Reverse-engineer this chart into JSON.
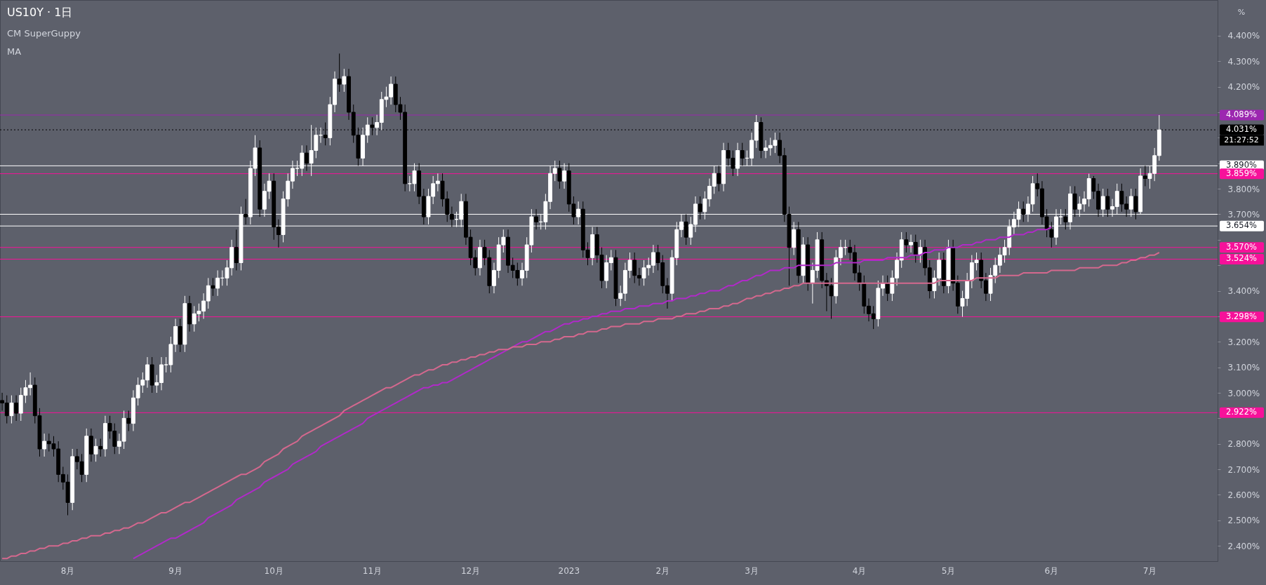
{
  "chart_data": {
    "type": "candlestick",
    "title": "US10Y · 1日",
    "annotations": [
      "CM SuperGuppy",
      "MA",
      "21:27:52",
      "%"
    ],
    "categories": [
      null,
      null,
      null,
      null,
      null,
      null,
      null,
      null,
      null,
      null,
      null,
      null,
      null,
      null,
      "8月",
      null,
      null,
      null,
      null,
      null,
      null,
      null,
      null,
      null,
      null,
      null,
      null,
      null,
      null,
      null,
      null,
      null,
      null,
      null,
      null,
      null,
      null,
      "9月",
      null,
      null,
      null,
      null,
      null,
      null,
      null,
      null,
      null,
      null,
      null,
      null,
      null,
      null,
      null,
      null,
      null,
      null,
      null,
      null,
      "10月",
      null,
      null,
      null,
      null,
      null,
      null,
      null,
      null,
      null,
      null,
      null,
      null,
      null,
      null,
      null,
      null,
      null,
      null,
      null,
      null,
      "11月",
      null,
      null,
      null,
      null,
      null,
      null,
      null,
      null,
      null,
      null,
      null,
      null,
      null,
      null,
      null,
      null,
      null,
      null,
      null,
      null,
      "12月",
      null,
      null,
      null,
      null,
      null,
      null,
      null,
      null,
      null,
      null,
      null,
      null,
      null,
      null,
      null,
      null,
      null,
      null,
      null,
      null,
      "2023",
      null,
      null,
      null,
      null,
      null,
      null,
      null,
      null,
      null,
      null,
      null,
      null,
      null,
      null,
      null,
      null,
      null,
      null,
      null,
      "2月",
      null,
      null,
      null,
      null,
      null,
      null,
      null,
      null,
      null,
      null,
      null,
      null,
      null,
      null,
      null,
      null,
      null,
      null,
      "3月",
      null,
      null,
      null,
      null,
      null,
      null,
      null,
      null,
      null,
      null,
      null,
      null,
      null,
      null,
      null,
      null,
      null,
      null,
      null,
      null,
      null,
      null,
      "4月",
      null,
      null,
      null,
      null,
      null,
      null,
      null,
      null,
      null,
      null,
      null,
      null,
      null,
      null,
      null,
      null,
      null,
      null,
      "5月",
      null,
      null,
      null,
      null,
      null,
      null,
      null,
      null,
      null,
      null,
      null,
      null,
      null,
      null,
      null,
      null,
      null,
      null,
      null,
      null,
      null,
      "6月",
      null,
      null,
      null,
      null,
      null,
      null,
      null,
      null,
      null,
      null,
      null,
      null,
      null,
      null,
      null,
      null,
      null,
      null,
      null,
      null,
      "7月",
      null,
      null,
      null,
      null,
      null,
      null,
      null,
      null,
      null,
      null,
      null,
      null,
      null,
      null
    ],
    "ohlc": [
      [
        2.97,
        3.0,
        2.93,
        2.96
      ],
      [
        2.96,
        2.99,
        2.88,
        2.91
      ],
      [
        2.91,
        2.99,
        2.88,
        2.96
      ],
      [
        2.96,
        2.99,
        2.89,
        2.92
      ],
      [
        2.92,
        3.02,
        2.89,
        2.99
      ],
      [
        2.99,
        3.05,
        2.96,
        3.02
      ],
      [
        3.02,
        3.08,
        2.99,
        3.03
      ],
      [
        3.03,
        3.06,
        2.88,
        2.91
      ],
      [
        2.91,
        2.94,
        2.75,
        2.78
      ],
      [
        2.78,
        2.84,
        2.75,
        2.81
      ],
      [
        2.81,
        2.84,
        2.77,
        2.8
      ],
      [
        2.8,
        2.83,
        2.75,
        2.78
      ],
      [
        2.78,
        2.81,
        2.65,
        2.68
      ],
      [
        2.68,
        2.71,
        2.62,
        2.65
      ],
      [
        2.65,
        2.68,
        2.52,
        2.57
      ],
      [
        2.57,
        2.78,
        2.54,
        2.75
      ],
      [
        2.75,
        2.78,
        2.7,
        2.73
      ],
      [
        2.73,
        2.76,
        2.65,
        2.68
      ],
      [
        2.68,
        2.86,
        2.65,
        2.83
      ],
      [
        2.83,
        2.86,
        2.73,
        2.76
      ],
      [
        2.76,
        2.82,
        2.73,
        2.79
      ],
      [
        2.79,
        2.82,
        2.75,
        2.78
      ],
      [
        2.78,
        2.91,
        2.75,
        2.88
      ],
      [
        2.88,
        2.91,
        2.82,
        2.85
      ],
      [
        2.85,
        2.88,
        2.76,
        2.79
      ],
      [
        2.79,
        2.84,
        2.76,
        2.81
      ],
      [
        2.81,
        2.93,
        2.78,
        2.9
      ],
      [
        2.9,
        2.93,
        2.85,
        2.88
      ],
      [
        2.88,
        3.01,
        2.85,
        2.98
      ],
      [
        2.98,
        3.06,
        2.95,
        3.03
      ],
      [
        3.03,
        3.08,
        3.0,
        3.05
      ],
      [
        3.05,
        3.14,
        3.02,
        3.11
      ],
      [
        3.11,
        3.14,
        3.0,
        3.03
      ],
      [
        3.03,
        3.07,
        3.0,
        3.04
      ],
      [
        3.04,
        3.14,
        3.01,
        3.11
      ],
      [
        3.11,
        3.14,
        3.08,
        3.11
      ],
      [
        3.11,
        3.22,
        3.08,
        3.19
      ],
      [
        3.19,
        3.29,
        3.16,
        3.26
      ],
      [
        3.26,
        3.29,
        3.16,
        3.19
      ],
      [
        3.19,
        3.38,
        3.16,
        3.35
      ],
      [
        3.35,
        3.38,
        3.24,
        3.27
      ],
      [
        3.27,
        3.34,
        3.24,
        3.31
      ],
      [
        3.31,
        3.35,
        3.28,
        3.32
      ],
      [
        3.32,
        3.39,
        3.29,
        3.36
      ],
      [
        3.36,
        3.45,
        3.33,
        3.42
      ],
      [
        3.42,
        3.45,
        3.38,
        3.41
      ],
      [
        3.41,
        3.48,
        3.38,
        3.45
      ],
      [
        3.45,
        3.48,
        3.42,
        3.45
      ],
      [
        3.45,
        3.52,
        3.42,
        3.49
      ],
      [
        3.49,
        3.6,
        3.46,
        3.57
      ],
      [
        3.57,
        3.64,
        3.48,
        3.51
      ],
      [
        3.51,
        3.73,
        3.48,
        3.7
      ],
      [
        3.7,
        3.76,
        3.66,
        3.69
      ],
      [
        3.69,
        3.91,
        3.66,
        3.88
      ],
      [
        3.88,
        4.01,
        3.85,
        3.96
      ],
      [
        3.96,
        3.99,
        3.69,
        3.72
      ],
      [
        3.72,
        3.82,
        3.69,
        3.79
      ],
      [
        3.79,
        3.86,
        3.76,
        3.83
      ],
      [
        3.83,
        3.86,
        3.6,
        3.65
      ],
      [
        3.65,
        3.68,
        3.57,
        3.62
      ],
      [
        3.62,
        3.79,
        3.59,
        3.76
      ],
      [
        3.76,
        3.86,
        3.73,
        3.83
      ],
      [
        3.83,
        3.91,
        3.8,
        3.88
      ],
      [
        3.88,
        3.91,
        3.85,
        3.88
      ],
      [
        3.88,
        3.97,
        3.85,
        3.94
      ],
      [
        3.94,
        3.97,
        3.87,
        3.9
      ],
      [
        3.9,
        4.05,
        3.85,
        3.95
      ],
      [
        3.95,
        4.04,
        3.92,
        4.01
      ],
      [
        4.01,
        4.04,
        3.98,
        4.01
      ],
      [
        4.01,
        4.06,
        3.97,
        4.0
      ],
      [
        4.0,
        4.16,
        3.97,
        4.13
      ],
      [
        4.13,
        4.26,
        4.1,
        4.23
      ],
      [
        4.23,
        4.33,
        4.18,
        4.21
      ],
      [
        4.21,
        4.27,
        4.18,
        4.24
      ],
      [
        4.24,
        4.27,
        4.07,
        4.1
      ],
      [
        4.1,
        4.13,
        3.98,
        4.01
      ],
      [
        4.01,
        4.04,
        3.89,
        3.92
      ],
      [
        3.92,
        4.04,
        3.89,
        4.01
      ],
      [
        4.01,
        4.08,
        3.98,
        4.05
      ],
      [
        4.05,
        4.08,
        4.01,
        4.04
      ],
      [
        4.04,
        4.09,
        4.01,
        4.06
      ],
      [
        4.06,
        4.18,
        4.03,
        4.15
      ],
      [
        4.15,
        4.2,
        4.12,
        4.16
      ],
      [
        4.16,
        4.24,
        4.13,
        4.21
      ],
      [
        4.21,
        4.24,
        4.1,
        4.13
      ],
      [
        4.13,
        4.16,
        4.07,
        4.1
      ],
      [
        4.1,
        4.13,
        3.79,
        3.82
      ],
      [
        3.82,
        3.85,
        3.79,
        3.82
      ],
      [
        3.82,
        3.9,
        3.79,
        3.87
      ],
      [
        3.87,
        3.9,
        3.74,
        3.77
      ],
      [
        3.77,
        3.8,
        3.66,
        3.69
      ],
      [
        3.69,
        3.8,
        3.66,
        3.77
      ],
      [
        3.77,
        3.85,
        3.74,
        3.82
      ],
      [
        3.82,
        3.86,
        3.79,
        3.83
      ],
      [
        3.83,
        3.86,
        3.73,
        3.76
      ],
      [
        3.76,
        3.79,
        3.67,
        3.7
      ],
      [
        3.7,
        3.73,
        3.65,
        3.68
      ],
      [
        3.68,
        3.71,
        3.65,
        3.68
      ],
      [
        3.68,
        3.78,
        3.65,
        3.75
      ],
      [
        3.75,
        3.78,
        3.58,
        3.61
      ],
      [
        3.61,
        3.64,
        3.5,
        3.53
      ],
      [
        3.53,
        3.56,
        3.46,
        3.49
      ],
      [
        3.49,
        3.6,
        3.46,
        3.57
      ],
      [
        3.57,
        3.6,
        3.5,
        3.53
      ],
      [
        3.53,
        3.56,
        3.39,
        3.42
      ],
      [
        3.42,
        3.51,
        3.39,
        3.48
      ],
      [
        3.48,
        3.61,
        3.45,
        3.58
      ],
      [
        3.58,
        3.64,
        3.55,
        3.61
      ],
      [
        3.61,
        3.64,
        3.47,
        3.5
      ],
      [
        3.5,
        3.53,
        3.45,
        3.48
      ],
      [
        3.48,
        3.51,
        3.42,
        3.45
      ],
      [
        3.45,
        3.51,
        3.42,
        3.48
      ],
      [
        3.48,
        3.61,
        3.45,
        3.58
      ],
      [
        3.58,
        3.72,
        3.55,
        3.69
      ],
      [
        3.69,
        3.72,
        3.64,
        3.67
      ],
      [
        3.67,
        3.7,
        3.64,
        3.67
      ],
      [
        3.67,
        3.78,
        3.64,
        3.75
      ],
      [
        3.75,
        3.89,
        3.72,
        3.86
      ],
      [
        3.86,
        3.91,
        3.83,
        3.88
      ],
      [
        3.88,
        3.91,
        3.8,
        3.83
      ],
      [
        3.83,
        3.9,
        3.8,
        3.87
      ],
      [
        3.87,
        3.9,
        3.71,
        3.74
      ],
      [
        3.74,
        3.77,
        3.66,
        3.69
      ],
      [
        3.69,
        3.75,
        3.66,
        3.72
      ],
      [
        3.72,
        3.75,
        3.53,
        3.56
      ],
      [
        3.56,
        3.59,
        3.5,
        3.53
      ],
      [
        3.53,
        3.65,
        3.5,
        3.62
      ],
      [
        3.62,
        3.65,
        3.51,
        3.54
      ],
      [
        3.54,
        3.57,
        3.41,
        3.44
      ],
      [
        3.44,
        3.54,
        3.41,
        3.51
      ],
      [
        3.51,
        3.56,
        3.48,
        3.53
      ],
      [
        3.53,
        3.56,
        3.34,
        3.37
      ],
      [
        3.37,
        3.42,
        3.34,
        3.39
      ],
      [
        3.39,
        3.51,
        3.36,
        3.48
      ],
      [
        3.48,
        3.55,
        3.45,
        3.52
      ],
      [
        3.52,
        3.55,
        3.43,
        3.46
      ],
      [
        3.46,
        3.49,
        3.42,
        3.45
      ],
      [
        3.45,
        3.52,
        3.42,
        3.49
      ],
      [
        3.49,
        3.53,
        3.46,
        3.5
      ],
      [
        3.5,
        3.58,
        3.47,
        3.55
      ],
      [
        3.55,
        3.58,
        3.48,
        3.51
      ],
      [
        3.51,
        3.54,
        3.39,
        3.42
      ],
      [
        3.42,
        3.45,
        3.33,
        3.39
      ],
      [
        3.39,
        3.56,
        3.36,
        3.53
      ],
      [
        3.53,
        3.67,
        3.5,
        3.64
      ],
      [
        3.64,
        3.7,
        3.61,
        3.67
      ],
      [
        3.67,
        3.7,
        3.58,
        3.61
      ],
      [
        3.61,
        3.69,
        3.58,
        3.66
      ],
      [
        3.66,
        3.77,
        3.63,
        3.74
      ],
      [
        3.74,
        3.77,
        3.68,
        3.71
      ],
      [
        3.71,
        3.79,
        3.68,
        3.76
      ],
      [
        3.76,
        3.84,
        3.73,
        3.81
      ],
      [
        3.81,
        3.89,
        3.78,
        3.86
      ],
      [
        3.86,
        3.89,
        3.79,
        3.82
      ],
      [
        3.82,
        3.98,
        3.79,
        3.95
      ],
      [
        3.95,
        3.98,
        3.89,
        3.92
      ],
      [
        3.92,
        3.95,
        3.85,
        3.88
      ],
      [
        3.88,
        3.98,
        3.85,
        3.95
      ],
      [
        3.95,
        3.98,
        3.89,
        3.92
      ],
      [
        3.92,
        3.95,
        3.89,
        3.92
      ],
      [
        3.92,
        4.02,
        3.89,
        3.99
      ],
      [
        3.99,
        4.089,
        3.96,
        4.06
      ],
      [
        4.06,
        4.08,
        3.92,
        3.95
      ],
      [
        3.95,
        3.99,
        3.92,
        3.96
      ],
      [
        3.96,
        4.0,
        3.93,
        3.97
      ],
      [
        3.97,
        4.02,
        3.94,
        3.99
      ],
      [
        3.99,
        4.02,
        3.9,
        3.93
      ],
      [
        3.93,
        3.96,
        3.67,
        3.7
      ],
      [
        3.7,
        3.73,
        3.42,
        3.57
      ],
      [
        3.57,
        3.67,
        3.54,
        3.64
      ],
      [
        3.64,
        3.67,
        3.43,
        3.46
      ],
      [
        3.46,
        3.61,
        3.43,
        3.58
      ],
      [
        3.58,
        3.61,
        3.4,
        3.43
      ],
      [
        3.43,
        3.51,
        3.35,
        3.48
      ],
      [
        3.48,
        3.63,
        3.45,
        3.6
      ],
      [
        3.6,
        3.63,
        3.41,
        3.44
      ],
      [
        3.44,
        3.47,
        3.32,
        3.42
      ],
      [
        3.42,
        3.45,
        3.29,
        3.38
      ],
      [
        3.38,
        3.56,
        3.35,
        3.53
      ],
      [
        3.53,
        3.6,
        3.5,
        3.57
      ],
      [
        3.57,
        3.6,
        3.54,
        3.57
      ],
      [
        3.57,
        3.6,
        3.52,
        3.55
      ],
      [
        3.55,
        3.58,
        3.44,
        3.47
      ],
      [
        3.47,
        3.5,
        3.4,
        3.43
      ],
      [
        3.43,
        3.46,
        3.31,
        3.34
      ],
      [
        3.34,
        3.37,
        3.28,
        3.31
      ],
      [
        3.31,
        3.34,
        3.25,
        3.29
      ],
      [
        3.29,
        3.44,
        3.26,
        3.41
      ],
      [
        3.41,
        3.46,
        3.38,
        3.43
      ],
      [
        3.43,
        3.46,
        3.36,
        3.39
      ],
      [
        3.39,
        3.48,
        3.36,
        3.45
      ],
      [
        3.45,
        3.55,
        3.42,
        3.52
      ],
      [
        3.52,
        3.63,
        3.49,
        3.6
      ],
      [
        3.6,
        3.63,
        3.55,
        3.58
      ],
      [
        3.58,
        3.62,
        3.55,
        3.59
      ],
      [
        3.59,
        3.62,
        3.51,
        3.54
      ],
      [
        3.54,
        3.6,
        3.51,
        3.57
      ],
      [
        3.57,
        3.6,
        3.46,
        3.49
      ],
      [
        3.49,
        3.52,
        3.37,
        3.4
      ],
      [
        3.4,
        3.48,
        3.37,
        3.45
      ],
      [
        3.45,
        3.55,
        3.42,
        3.52
      ],
      [
        3.52,
        3.55,
        3.39,
        3.42
      ],
      [
        3.42,
        3.6,
        3.39,
        3.57
      ],
      [
        3.57,
        3.6,
        3.4,
        3.43
      ],
      [
        3.43,
        3.46,
        3.31,
        3.34
      ],
      [
        3.34,
        3.4,
        3.298,
        3.37
      ],
      [
        3.37,
        3.47,
        3.34,
        3.44
      ],
      [
        3.44,
        3.54,
        3.41,
        3.51
      ],
      [
        3.51,
        3.55,
        3.48,
        3.52
      ],
      [
        3.52,
        3.55,
        3.41,
        3.44
      ],
      [
        3.44,
        3.47,
        3.36,
        3.39
      ],
      [
        3.39,
        3.49,
        3.36,
        3.46
      ],
      [
        3.46,
        3.53,
        3.43,
        3.5
      ],
      [
        3.5,
        3.57,
        3.47,
        3.54
      ],
      [
        3.54,
        3.6,
        3.51,
        3.57
      ],
      [
        3.57,
        3.68,
        3.54,
        3.65
      ],
      [
        3.65,
        3.71,
        3.62,
        3.68
      ],
      [
        3.68,
        3.75,
        3.65,
        3.72
      ],
      [
        3.72,
        3.75,
        3.67,
        3.7
      ],
      [
        3.7,
        3.77,
        3.67,
        3.74
      ],
      [
        3.74,
        3.85,
        3.71,
        3.82
      ],
      [
        3.82,
        3.86,
        3.77,
        3.8
      ],
      [
        3.8,
        3.83,
        3.66,
        3.69
      ],
      [
        3.69,
        3.72,
        3.61,
        3.64
      ],
      [
        3.64,
        3.67,
        3.57,
        3.61
      ],
      [
        3.61,
        3.72,
        3.58,
        3.69
      ],
      [
        3.69,
        3.72,
        3.66,
        3.69
      ],
      [
        3.69,
        3.72,
        3.64,
        3.67
      ],
      [
        3.67,
        3.81,
        3.64,
        3.78
      ],
      [
        3.78,
        3.81,
        3.69,
        3.72
      ],
      [
        3.72,
        3.77,
        3.69,
        3.74
      ],
      [
        3.74,
        3.79,
        3.71,
        3.76
      ],
      [
        3.76,
        3.859,
        3.73,
        3.84
      ],
      [
        3.84,
        3.85,
        3.76,
        3.79
      ],
      [
        3.79,
        3.82,
        3.69,
        3.72
      ],
      [
        3.72,
        3.8,
        3.69,
        3.77
      ],
      [
        3.77,
        3.8,
        3.69,
        3.72
      ],
      [
        3.72,
        3.76,
        3.69,
        3.73
      ],
      [
        3.73,
        3.82,
        3.7,
        3.79
      ],
      [
        3.79,
        3.82,
        3.71,
        3.74
      ],
      [
        3.74,
        3.77,
        3.69,
        3.72
      ],
      [
        3.72,
        3.8,
        3.69,
        3.77
      ],
      [
        3.77,
        3.8,
        3.68,
        3.71
      ],
      [
        3.71,
        3.88,
        3.7,
        3.85
      ],
      [
        3.85,
        3.89,
        3.81,
        3.84
      ],
      [
        3.84,
        3.89,
        3.8,
        3.86
      ],
      [
        3.86,
        3.96,
        3.83,
        3.93
      ],
      [
        3.93,
        4.089,
        3.91,
        4.031
      ],
      null,
      null,
      null,
      null,
      null,
      null,
      null,
      null,
      null,
      null,
      null,
      null
    ],
    "series": [
      {
        "type": "line",
        "color": "#b02ac8",
        "values": [
          null,
          null,
          null,
          null,
          null,
          null,
          null,
          null,
          null,
          null,
          null,
          null,
          null,
          null,
          null,
          null,
          null,
          null,
          null,
          null,
          null,
          null,
          null,
          null,
          null,
          null,
          null,
          null,
          2.35,
          2.36,
          2.37,
          2.38,
          2.39,
          2.4,
          2.41,
          2.42,
          2.43,
          2.43,
          2.44,
          2.45,
          2.46,
          2.47,
          2.48,
          2.49,
          2.51,
          2.52,
          2.53,
          2.54,
          2.55,
          2.56,
          2.58,
          2.59,
          2.6,
          2.61,
          2.62,
          2.63,
          2.65,
          2.66,
          2.67,
          2.68,
          2.69,
          2.7,
          2.72,
          2.73,
          2.74,
          2.75,
          2.76,
          2.77,
          2.79,
          2.8,
          2.81,
          2.82,
          2.83,
          2.84,
          2.85,
          2.86,
          2.87,
          2.88,
          2.9,
          2.91,
          2.92,
          2.93,
          2.94,
          2.95,
          2.96,
          2.97,
          2.98,
          2.99,
          3.0,
          3.01,
          3.02,
          3.02,
          3.03,
          3.03,
          3.04,
          3.04,
          3.05,
          3.06,
          3.07,
          3.08,
          3.09,
          3.1,
          3.11,
          3.12,
          3.13,
          3.14,
          3.15,
          3.16,
          3.17,
          3.18,
          3.19,
          3.2,
          3.2,
          3.21,
          3.22,
          3.23,
          3.24,
          3.24,
          3.25,
          3.26,
          3.27,
          3.27,
          3.28,
          3.28,
          3.29,
          3.29,
          3.3,
          3.3,
          3.31,
          3.31,
          3.32,
          3.32,
          3.32,
          3.33,
          3.33,
          3.33,
          3.34,
          3.34,
          3.34,
          3.35,
          3.35,
          3.35,
          3.36,
          3.36,
          3.37,
          3.37,
          3.37,
          3.38,
          3.38,
          3.39,
          3.39,
          3.4,
          3.4,
          3.4,
          3.41,
          3.42,
          3.42,
          3.43,
          3.44,
          3.44,
          3.45,
          3.46,
          3.46,
          3.47,
          3.48,
          3.48,
          3.48,
          3.49,
          3.49,
          3.49,
          3.5,
          3.5,
          3.5,
          3.5,
          3.5,
          3.5,
          3.5,
          3.5,
          3.51,
          3.51,
          3.51,
          3.51,
          3.51,
          3.51,
          3.52,
          3.52,
          3.52,
          3.52,
          3.52,
          3.53,
          3.53,
          3.53,
          3.53,
          3.53,
          3.54,
          3.54,
          3.54,
          3.55,
          3.55,
          3.56,
          3.56,
          3.56,
          3.57,
          3.57,
          3.57,
          3.58,
          3.58,
          3.58,
          3.59,
          3.59,
          3.6,
          3.6,
          3.6,
          3.61,
          3.61,
          3.61,
          3.62,
          3.62,
          3.62,
          3.63,
          3.63,
          3.64,
          3.64,
          3.64,
          3.65,
          null,
          null,
          null,
          null,
          null,
          null,
          null,
          null,
          null,
          null,
          null,
          null,
          null,
          null,
          null,
          null,
          null,
          null,
          null,
          null,
          null,
          null,
          null,
          null,
          null,
          null,
          null,
          null,
          null,
          null,
          null,
          null,
          null,
          null,
          null
        ]
      },
      {
        "type": "line",
        "color": "#d4688e",
        "values": [
          2.35,
          2.35,
          2.36,
          2.36,
          2.37,
          2.37,
          2.38,
          2.38,
          2.39,
          2.39,
          2.4,
          2.4,
          2.4,
          2.41,
          2.41,
          2.42,
          2.42,
          2.43,
          2.43,
          2.44,
          2.44,
          2.44,
          2.45,
          2.45,
          2.46,
          2.46,
          2.47,
          2.47,
          2.48,
          2.49,
          2.49,
          2.5,
          2.51,
          2.52,
          2.53,
          2.53,
          2.54,
          2.55,
          2.56,
          2.57,
          2.57,
          2.58,
          2.59,
          2.6,
          2.61,
          2.62,
          2.63,
          2.64,
          2.65,
          2.66,
          2.67,
          2.68,
          2.68,
          2.69,
          2.7,
          2.71,
          2.73,
          2.74,
          2.75,
          2.76,
          2.78,
          2.79,
          2.8,
          2.81,
          2.83,
          2.84,
          2.85,
          2.86,
          2.87,
          2.88,
          2.89,
          2.9,
          2.91,
          2.93,
          2.94,
          2.95,
          2.96,
          2.97,
          2.98,
          2.99,
          3.0,
          3.01,
          3.02,
          3.02,
          3.03,
          3.04,
          3.05,
          3.06,
          3.07,
          3.07,
          3.08,
          3.09,
          3.09,
          3.1,
          3.11,
          3.11,
          3.12,
          3.12,
          3.13,
          3.13,
          3.14,
          3.14,
          3.15,
          3.15,
          3.16,
          3.16,
          3.17,
          3.17,
          3.17,
          3.18,
          3.18,
          3.18,
          3.19,
          3.19,
          3.19,
          3.2,
          3.2,
          3.2,
          3.21,
          3.21,
          3.22,
          3.22,
          3.22,
          3.23,
          3.23,
          3.24,
          3.24,
          3.24,
          3.25,
          3.25,
          3.26,
          3.26,
          3.26,
          3.27,
          3.27,
          3.27,
          3.27,
          3.28,
          3.28,
          3.28,
          3.29,
          3.29,
          3.29,
          3.29,
          3.3,
          3.3,
          3.31,
          3.31,
          3.31,
          3.32,
          3.32,
          3.33,
          3.33,
          3.33,
          3.34,
          3.34,
          3.35,
          3.35,
          3.36,
          3.37,
          3.37,
          3.38,
          3.38,
          3.39,
          3.39,
          3.4,
          3.4,
          3.41,
          3.41,
          3.42,
          3.42,
          3.43,
          3.43,
          3.43,
          3.43,
          3.43,
          3.43,
          3.43,
          3.43,
          3.43,
          3.43,
          3.43,
          3.43,
          3.43,
          3.43,
          3.43,
          3.43,
          3.43,
          3.43,
          3.43,
          3.43,
          3.43,
          3.43,
          3.43,
          3.43,
          3.43,
          3.43,
          3.43,
          3.43,
          3.43,
          3.44,
          3.44,
          3.44,
          3.44,
          3.44,
          3.44,
          3.44,
          3.44,
          3.45,
          3.45,
          3.45,
          3.45,
          3.45,
          3.46,
          3.46,
          3.46,
          3.46,
          3.46,
          3.47,
          3.47,
          3.47,
          3.47,
          3.47,
          3.47,
          3.48,
          3.48,
          3.48,
          3.48,
          3.48,
          3.48,
          3.49,
          3.49,
          3.49,
          3.49,
          3.49,
          3.5,
          3.5,
          3.5,
          3.5,
          3.51,
          3.51,
          3.52,
          3.52,
          3.53,
          3.53,
          3.54,
          3.54,
          3.55,
          null,
          null,
          null,
          null,
          null,
          null,
          null,
          null,
          null,
          null,
          null,
          null
        ]
      }
    ],
    "ylim": [
      2.34,
      4.54
    ],
    "yticks": [
      {
        "value": 2.4,
        "label": "2.400%"
      },
      {
        "value": 2.5,
        "label": "2.500%"
      },
      {
        "value": 2.6,
        "label": "2.600%"
      },
      {
        "value": 2.7,
        "label": "2.700%"
      },
      {
        "value": 2.8,
        "label": "2.800%"
      },
      {
        "value": 2.9,
        "label": null
      },
      {
        "value": 3.0,
        "label": "3.000%"
      },
      {
        "value": 3.1,
        "label": "3.100%"
      },
      {
        "value": 3.2,
        "label": "3.200%"
      },
      {
        "value": 3.3,
        "label": null
      },
      {
        "value": 3.4,
        "label": "3.400%"
      },
      {
        "value": 3.5,
        "label": null
      },
      {
        "value": 3.6,
        "label": null
      },
      {
        "value": 3.7,
        "label": "3.700%"
      },
      {
        "value": 3.8,
        "label": "3.800%"
      },
      {
        "value": 3.9,
        "label": null
      },
      {
        "value": 4.0,
        "label": null
      },
      {
        "value": 4.1,
        "label": null
      },
      {
        "value": 4.2,
        "label": "4.200%"
      },
      {
        "value": 4.3,
        "label": "4.300%"
      },
      {
        "value": 4.4,
        "label": "4.400%"
      }
    ],
    "ref_lines": [
      {
        "axis": "y",
        "value": 4.089,
        "label": "4.089%",
        "color": "#9c27b0"
      },
      {
        "axis": "y",
        "value": 4.031,
        "label": "4.031%",
        "color": "#000000",
        "line_style": "dotted"
      },
      {
        "axis": "y",
        "value": 3.89,
        "label": "3.890%",
        "color": "#ffffff"
      },
      {
        "axis": "y",
        "value": 3.859,
        "label": "3.859%",
        "color": "#f7119a"
      },
      {
        "axis": "y",
        "value": 3.7,
        "color": "#ffffff"
      },
      {
        "axis": "y",
        "value": 3.654,
        "label": "3.654%",
        "color": "#ffffff"
      },
      {
        "axis": "y",
        "value": 3.57,
        "label": "3.570%",
        "color": "#f7119a"
      },
      {
        "axis": "y",
        "value": 3.524,
        "label": "3.524%",
        "color": "#f7119a"
      },
      {
        "axis": "y",
        "value": 3.298,
        "label": "3.298%",
        "color": "#f7119a"
      },
      {
        "axis": "y",
        "value": 2.922,
        "label": "2.922%",
        "color": "#f7119a"
      }
    ],
    "grid": false
  }
}
